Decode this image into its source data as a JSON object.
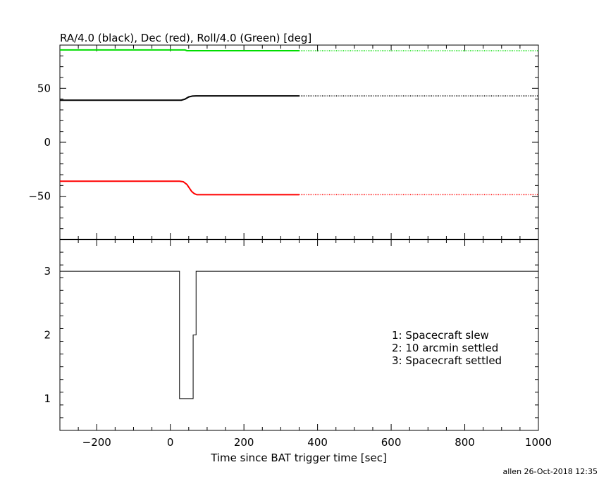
{
  "chart_data": [
    {
      "type": "line",
      "title": "RA/4.0 (black), Dec (red), Roll/4.0 (Green) [deg]",
      "xlim": [
        -300,
        1000
      ],
      "ylim": [
        -90,
        90
      ],
      "yticks": [
        -50,
        0,
        50
      ],
      "xticks": [
        -200,
        0,
        200,
        400,
        600,
        800,
        1000
      ],
      "colors": {
        "ra": "#000000",
        "dec": "#ff0000",
        "roll": "#00dd00"
      },
      "series": [
        {
          "key": "roll",
          "solid": {
            "x": [
              -300,
              40,
              45,
              350
            ],
            "y": [
              85.5,
              85.5,
              84.8,
              84.8
            ]
          },
          "dotted": {
            "x": [
              350,
              1000
            ],
            "y": [
              84.8,
              84.8
            ]
          }
        },
        {
          "key": "ra",
          "solid": {
            "x": [
              -300,
              30,
              40,
              50,
              60,
              70,
              350
            ],
            "y": [
              39,
              39,
              40,
              42,
              42.8,
              43,
              43
            ]
          },
          "dotted": {
            "x": [
              350,
              1000
            ],
            "y": [
              43,
              43
            ]
          }
        },
        {
          "key": "dec",
          "solid": {
            "x": [
              -300,
              25,
              35,
              45,
              52,
              58,
              65,
              72,
              350
            ],
            "y": [
              -36,
              -36,
              -36.5,
              -39,
              -42.5,
              -45.5,
              -47.5,
              -48.5,
              -48.5
            ]
          },
          "dotted": {
            "x": [
              350,
              1000
            ],
            "y": [
              -48.5,
              -48.5
            ]
          }
        }
      ]
    },
    {
      "type": "line",
      "step": true,
      "xlim": [
        -300,
        1000
      ],
      "ylim": [
        0.5,
        3.5
      ],
      "yticks": [
        1,
        2,
        3
      ],
      "xlabel": "Time since BAT trigger time [sec]",
      "x": [
        -300,
        25,
        25,
        62,
        62,
        70,
        70,
        1000
      ],
      "y": [
        3,
        3,
        1,
        1,
        2,
        2,
        3,
        3
      ],
      "legend": [
        "1: Spacecraft slew",
        "2: 10 arcmin settled",
        "3: Spacecraft settled"
      ]
    }
  ],
  "footer": "allen 26-Oct-2018 12:35"
}
